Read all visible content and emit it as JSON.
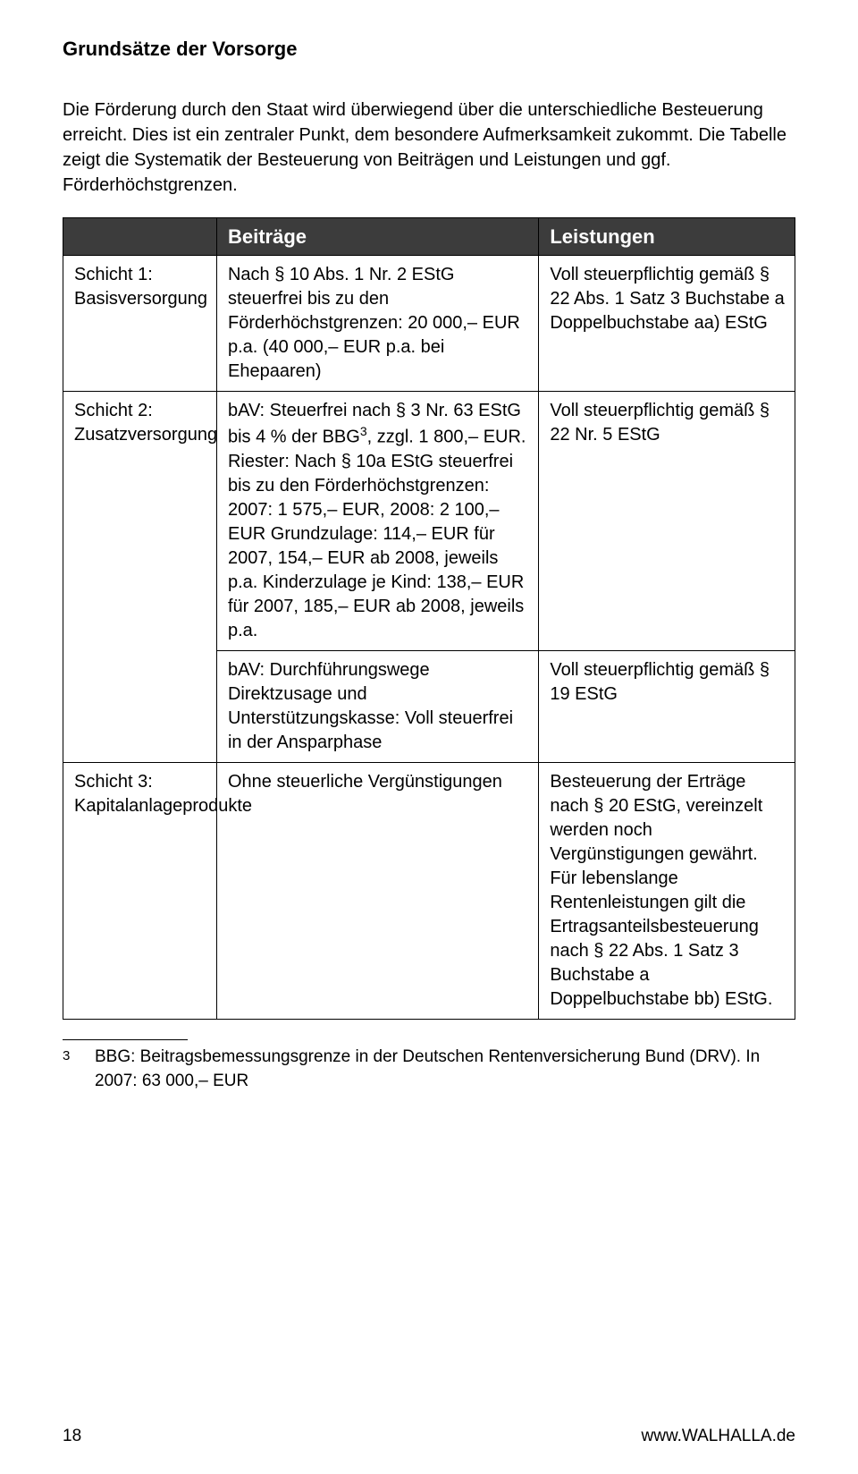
{
  "page_title": "Grundsätze der Vorsorge",
  "intro": "Die Förderung durch den Staat wird überwiegend über die unterschiedliche Besteuerung erreicht. Dies ist ein zentraler Punkt, dem besondere Aufmerksamkeit zukommt. Die Tabelle zeigt die Systematik der Besteuerung von Beiträgen und Leistungen und ggf. Förderhöchstgrenzen.",
  "table": {
    "head_col2": "Beiträge",
    "head_col3": "Leistungen",
    "row1": {
      "label": "Schicht 1: Basisversorgung",
      "col2": "Nach § 10 Abs. 1 Nr. 2 EStG steuerfrei bis zu den Förderhöchstgrenzen: 20 000,– EUR p.a. (40 000,– EUR p.a. bei Ehepaaren)",
      "col3": "Voll steuerpflichtig gemäß § 22 Abs. 1 Satz 3 Buchstabe a Doppelbuchstabe aa) EStG"
    },
    "row2a": {
      "label": "Schicht 2: Zusatzversorgung",
      "col2_html": "bAV: Steuerfrei nach § 3 Nr. 63 EStG bis 4 % der BBG<sup>3</sup>, zzgl. 1 800,– EUR. Riester: Nach § 10a EStG steuerfrei bis zu den Förderhöchstgrenzen: 2007: 1 575,– EUR, 2008: 2 100,– EUR Grundzulage: 114,– EUR für 2007, 154,– EUR ab 2008, jeweils p.a. Kinderzulage je Kind: 138,– EUR für 2007, 185,– EUR ab 2008, jeweils p.a.",
      "col3": "Voll steuerpflichtig gemäß § 22 Nr. 5 EStG"
    },
    "row2b": {
      "col2": "bAV: Durchführungswege Direktzusage und Unterstützungskasse: Voll steuerfrei in der Ansparphase",
      "col3": "Voll steuerpflichtig gemäß § 19 EStG"
    },
    "row3": {
      "label": "Schicht 3: Kapitalanlageprodukte",
      "col2": "Ohne steuerliche Vergünstigungen",
      "col3": "Besteuerung der Erträge nach § 20 EStG, vereinzelt werden noch Vergünstigungen gewährt. Für lebenslange Rentenleistungen gilt die Ertragsanteilsbesteuerung nach § 22 Abs. 1 Satz 3 Buchstabe a Doppelbuchstabe bb) EStG."
    }
  },
  "footnote": {
    "marker": "3",
    "text": "BBG: Beitragsbemessungsgrenze in der Deutschen Rentenversicherung Bund (DRV). In 2007: 63 000,– EUR"
  },
  "footer": {
    "page_number": "18",
    "url": "www.WALHALLA.de"
  }
}
